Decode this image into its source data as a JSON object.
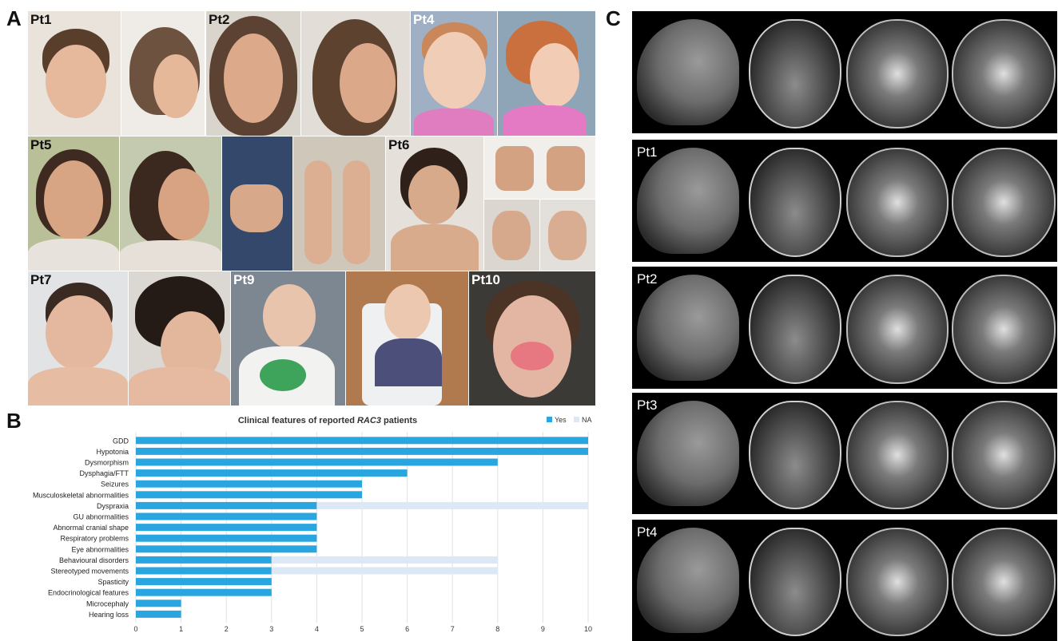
{
  "panels": {
    "a": "A",
    "b": "B",
    "c": "C"
  },
  "photo_labels": [
    "Pt1",
    "Pt2",
    "Pt4",
    "Pt5",
    "Pt6",
    "Pt7",
    "Pt9",
    "Pt10"
  ],
  "mri_labels": [
    "Pt1",
    "Pt2",
    "Pt3",
    "Pt4"
  ],
  "chart_data": {
    "type": "bar",
    "orientation": "horizontal",
    "stacked": true,
    "title_prefix": "Clinical features of reported ",
    "title_italic": "RAC3",
    "title_suffix": " patients",
    "categories": [
      "GDD",
      "Hypotonia",
      "Dysmorphism",
      "Dysphagia/FTT",
      "Seizures",
      "Musculoskeletal abnormalities",
      "Dyspraxia",
      "GU abnormalities",
      "Abnormal cranial shape",
      "Respiratory problems",
      "Eye abnormalities",
      "Behavioural disorders",
      "Stereotyped movements",
      "Spasticity",
      "Endocrinological features",
      "Microcephaly",
      "Hearing loss"
    ],
    "series": [
      {
        "name": "Yes",
        "color": "#29a6e0",
        "values": [
          10,
          10,
          8,
          6,
          5,
          5,
          4,
          4,
          4,
          4,
          4,
          3,
          3,
          3,
          3,
          1,
          1
        ]
      },
      {
        "name": "NA",
        "color": "#dce8f5",
        "values": [
          0,
          0,
          0,
          0,
          0,
          0,
          6,
          0,
          0,
          0,
          0,
          5,
          5,
          0,
          0,
          0,
          0
        ]
      }
    ],
    "xlim": [
      0,
      10
    ],
    "xticks": [
      "0",
      "1",
      "2",
      "3",
      "4",
      "5",
      "6",
      "7",
      "8",
      "9",
      "10"
    ],
    "grid": true,
    "legend_position": "top-right"
  }
}
